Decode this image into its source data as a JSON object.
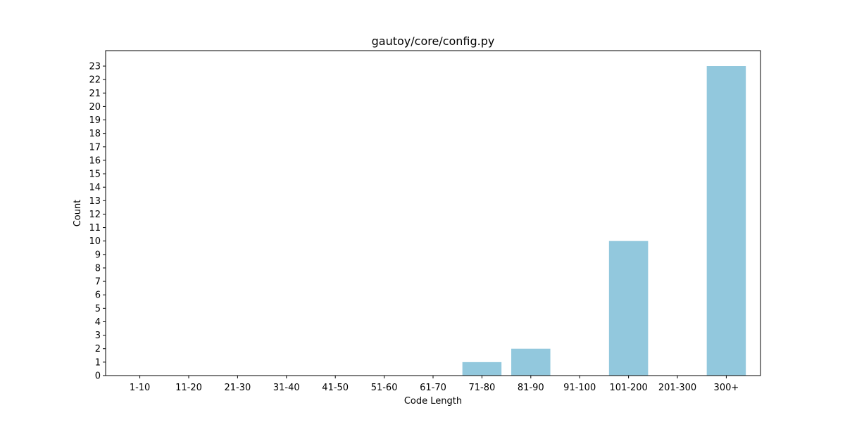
{
  "chart_data": {
    "type": "bar",
    "title": "gautoy/core/config.py",
    "xlabel": "Code Length",
    "ylabel": "Count",
    "categories": [
      "1-10",
      "11-20",
      "21-30",
      "31-40",
      "41-50",
      "51-60",
      "61-70",
      "71-80",
      "81-90",
      "91-100",
      "101-200",
      "201-300",
      "300+"
    ],
    "values": [
      0,
      0,
      0,
      0,
      0,
      0,
      0,
      1,
      2,
      0,
      10,
      0,
      23
    ],
    "ylim": [
      0,
      24.15
    ],
    "yticks": [
      0,
      1,
      2,
      3,
      4,
      5,
      6,
      7,
      8,
      9,
      10,
      11,
      12,
      13,
      14,
      15,
      16,
      17,
      18,
      19,
      20,
      21,
      22,
      23
    ],
    "bar_color": "#92c8dd",
    "grid": false,
    "legend": "none"
  }
}
